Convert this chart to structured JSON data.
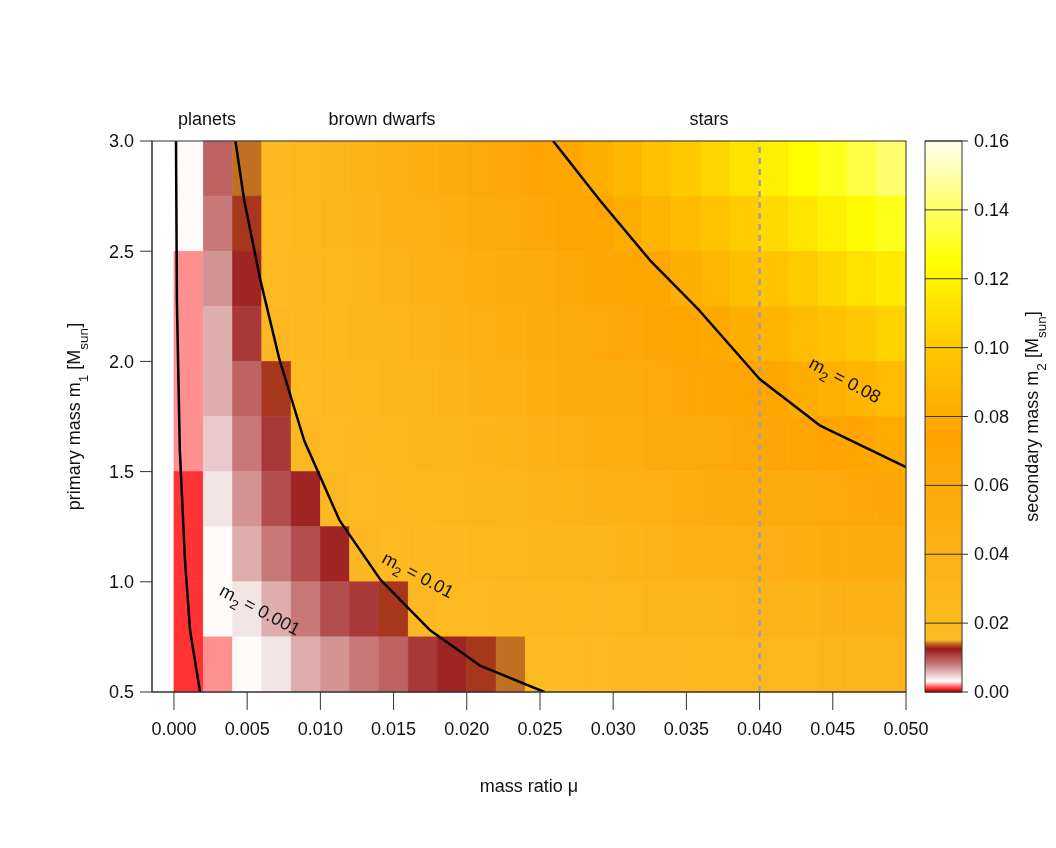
{
  "chart_data": {
    "type": "heatmap",
    "xlabel": "mass ratio μ",
    "ylabel": "primary mass m$_{1}$ [M$_{sun}$]",
    "clabel": "secondary mass m$_{2}$ [M$_{sun}$]",
    "xlim": [
      -0.0015,
      0.05
    ],
    "xticks": [
      {
        "value": 0,
        "label": "0.000"
      },
      {
        "value": 0.005,
        "label": "0.005"
      },
      {
        "value": 0.01,
        "label": "0.010"
      },
      {
        "value": 0.015,
        "label": "0.015"
      },
      {
        "value": 0.02,
        "label": "0.020"
      },
      {
        "value": 0.025,
        "label": "0.025"
      },
      {
        "value": 0.03,
        "label": "0.030"
      },
      {
        "value": 0.035,
        "label": "0.035"
      },
      {
        "value": 0.04,
        "label": "0.040"
      },
      {
        "value": 0.045,
        "label": "0.045"
      },
      {
        "value": 0.05,
        "label": "0.050"
      }
    ],
    "ylim": [
      0.5,
      3.0
    ],
    "yticks": [
      0.5,
      {
        "value": 1,
        "label": "1.0"
      },
      1.5,
      {
        "value": 2,
        "label": "2.0"
      },
      2.5,
      {
        "value": 3,
        "label": "3.0"
      }
    ],
    "clim": [
      0,
      0.16
    ],
    "cticks": [
      {
        "value": 0,
        "label": "0.00"
      },
      {
        "value": 0.02,
        "label": "0.02"
      },
      {
        "value": 0.04,
        "label": "0.04"
      },
      {
        "value": 0.06,
        "label": "0.06"
      },
      {
        "value": 0.08,
        "label": "0.08"
      },
      {
        "value": 0.1,
        "label": "0.10"
      },
      {
        "value": 0.12,
        "label": "0.12"
      },
      {
        "value": 0.14,
        "label": "0.14"
      },
      {
        "value": 0.16,
        "label": "0.16"
      }
    ],
    "x": [
      0.001,
      0.003,
      0.005,
      0.007,
      0.009,
      0.011,
      0.013,
      0.015,
      0.017,
      0.019,
      0.021,
      0.023,
      0.025,
      0.027,
      0.029,
      0.031,
      0.033,
      0.035,
      0.037,
      0.039,
      0.041,
      0.043,
      0.045,
      0.047,
      0.049
    ],
    "cells": [
      [
        0.003,
        0.009,
        0.014,
        0.02,
        0.026,
        0.032,
        0.037,
        0.043,
        0.049,
        0.055,
        0.06,
        0.066,
        0.072,
        0.078,
        0.083,
        0.089,
        0.095,
        0.101,
        0.106,
        0.112,
        0.118,
        0.124,
        0.129,
        0.135,
        0.141
      ],
      [
        0.003,
        0.008,
        0.013,
        0.018,
        0.024,
        0.029,
        0.034,
        0.039,
        0.045,
        0.05,
        0.055,
        0.06,
        0.066,
        0.071,
        0.076,
        0.081,
        0.087,
        0.092,
        0.097,
        0.102,
        0.108,
        0.113,
        0.118,
        0.123,
        0.129
      ],
      [
        0.002,
        0.007,
        0.012,
        0.017,
        0.021,
        0.026,
        0.031,
        0.036,
        0.04,
        0.045,
        0.05,
        0.055,
        0.059,
        0.064,
        0.069,
        0.074,
        0.078,
        0.083,
        0.088,
        0.093,
        0.097,
        0.102,
        0.107,
        0.112,
        0.116
      ],
      [
        0.002,
        0.006,
        0.011,
        0.015,
        0.019,
        0.023,
        0.028,
        0.032,
        0.036,
        0.04,
        0.045,
        0.049,
        0.053,
        0.057,
        0.062,
        0.066,
        0.07,
        0.074,
        0.079,
        0.083,
        0.087,
        0.091,
        0.096,
        0.1,
        0.104
      ],
      [
        0.002,
        0.006,
        0.009,
        0.013,
        0.017,
        0.021,
        0.024,
        0.028,
        0.032,
        0.036,
        0.039,
        0.043,
        0.047,
        0.051,
        0.054,
        0.058,
        0.062,
        0.066,
        0.069,
        0.073,
        0.077,
        0.081,
        0.084,
        0.088,
        0.092
      ],
      [
        0.002,
        0.005,
        0.008,
        0.011,
        0.015,
        0.018,
        0.021,
        0.024,
        0.028,
        0.031,
        0.034,
        0.037,
        0.041,
        0.044,
        0.047,
        0.05,
        0.054,
        0.057,
        0.06,
        0.063,
        0.067,
        0.07,
        0.073,
        0.076,
        0.08
      ],
      [
        0.001,
        0.004,
        0.007,
        0.01,
        0.012,
        0.015,
        0.018,
        0.021,
        0.023,
        0.026,
        0.029,
        0.032,
        0.034,
        0.037,
        0.04,
        0.043,
        0.045,
        0.048,
        0.051,
        0.054,
        0.056,
        0.059,
        0.062,
        0.065,
        0.067
      ],
      [
        0.001,
        0.003,
        0.006,
        0.008,
        0.01,
        0.012,
        0.015,
        0.017,
        0.019,
        0.021,
        0.024,
        0.026,
        0.028,
        0.03,
        0.033,
        0.035,
        0.037,
        0.039,
        0.042,
        0.044,
        0.046,
        0.048,
        0.051,
        0.053,
        0.055
      ],
      [
        0.001,
        0.003,
        0.004,
        0.006,
        0.008,
        0.01,
        0.011,
        0.013,
        0.015,
        0.017,
        0.018,
        0.02,
        0.022,
        0.024,
        0.025,
        0.027,
        0.029,
        0.031,
        0.032,
        0.034,
        0.036,
        0.038,
        0.039,
        0.041,
        0.043
      ],
      [
        0.001,
        0.002,
        0.003,
        0.004,
        0.006,
        0.007,
        0.008,
        0.009,
        0.011,
        0.012,
        0.013,
        0.014,
        0.016,
        0.017,
        0.018,
        0.019,
        0.021,
        0.022,
        0.023,
        0.024,
        0.026,
        0.027,
        0.028,
        0.029,
        0.031
      ]
    ],
    "series": [
      {
        "type": "line",
        "color": "#000000",
        "x": [
          0.00014,
          0.0002,
          0.0004,
          0.00075,
          0.0011,
          0.00178
        ],
        "values": [
          3.0,
          2.28,
          1.6,
          1.1,
          0.78,
          0.5
        ]
      },
      {
        "type": "line",
        "color": "#000000",
        "x": [
          0.0042,
          0.0048,
          0.0059,
          0.0072,
          0.0089,
          0.0113,
          0.0141,
          0.0175,
          0.0209,
          0.0253
        ],
        "values": [
          3.0,
          2.73,
          2.37,
          2.01,
          1.64,
          1.28,
          1.01,
          0.78,
          0.62,
          0.5
        ]
      },
      {
        "type": "line",
        "color": "#000000",
        "x": [
          0.0259,
          0.0291,
          0.0325,
          0.0359,
          0.04,
          0.0441,
          0.05
        ],
        "values": [
          3.0,
          2.73,
          2.46,
          2.23,
          1.92,
          1.71,
          1.52
        ]
      }
    ],
    "line_style": "solid",
    "ref_lines": [
      {
        "axis": "x",
        "value": 0.04,
        "color": "#a0a0a0",
        "line_style": "dashed"
      }
    ],
    "annotations": [
      "planets",
      "brown dwarfs",
      "stars",
      "m$_{2}$ = 0.001",
      "m$_{2}$ = 0.01",
      "m$_{2}$ = 0.08"
    ]
  }
}
